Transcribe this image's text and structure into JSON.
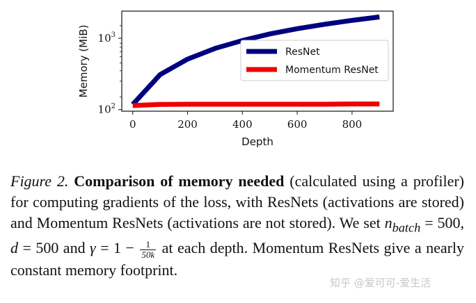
{
  "chart_data": {
    "type": "line",
    "xlabel": "Depth",
    "ylabel": "Memory (MiB)",
    "yscale": "log",
    "xlim": [
      -40,
      950
    ],
    "ylim": [
      95,
      2400
    ],
    "x_ticks": [
      0,
      200,
      400,
      600,
      800
    ],
    "x_tick_labels": [
      "0",
      "200",
      "400",
      "600",
      "800"
    ],
    "y_ticks": [
      100,
      1000
    ],
    "y_tick_labels": [
      {
        "base": "10",
        "exp": "2"
      },
      {
        "base": "10",
        "exp": "3"
      }
    ],
    "legend_position": "center-right",
    "grid": false,
    "series": [
      {
        "name": "ResNet",
        "color": "#00007f",
        "x": [
          0,
          100,
          200,
          300,
          400,
          500,
          600,
          700,
          800,
          900
        ],
        "y": [
          118,
          310,
          510,
          720,
          930,
          1150,
          1360,
          1570,
          1780,
          1990
        ]
      },
      {
        "name": "Momentum ResNet",
        "color": "#ee0000",
        "x": [
          0,
          100,
          200,
          300,
          400,
          500,
          600,
          700,
          800,
          900
        ],
        "y": [
          114,
          118,
          119,
          119,
          119,
          119,
          119,
          119,
          120,
          120
        ]
      }
    ]
  },
  "caption": {
    "fig_label": "Figure 2.",
    "bold_title": "Comparison of memory needed",
    "text_1": "(calculated using a profiler) for computing gradients of the loss, with ResNets (activations are stored) and Momentum ResNets (activations are not stored). We set",
    "n_var": "n",
    "n_sub": "batch",
    "eq_1": "= 500,",
    "d_var": "d",
    "eq_2": "= 500 and",
    "gamma_var": "γ",
    "eq_3": "= 1 −",
    "frac_num": "1",
    "frac_den": "50k",
    "text_2": "at each depth. Momentum ResNets give a nearly constant memory footprint."
  },
  "watermark": "知乎 @爱可可-爱生活"
}
